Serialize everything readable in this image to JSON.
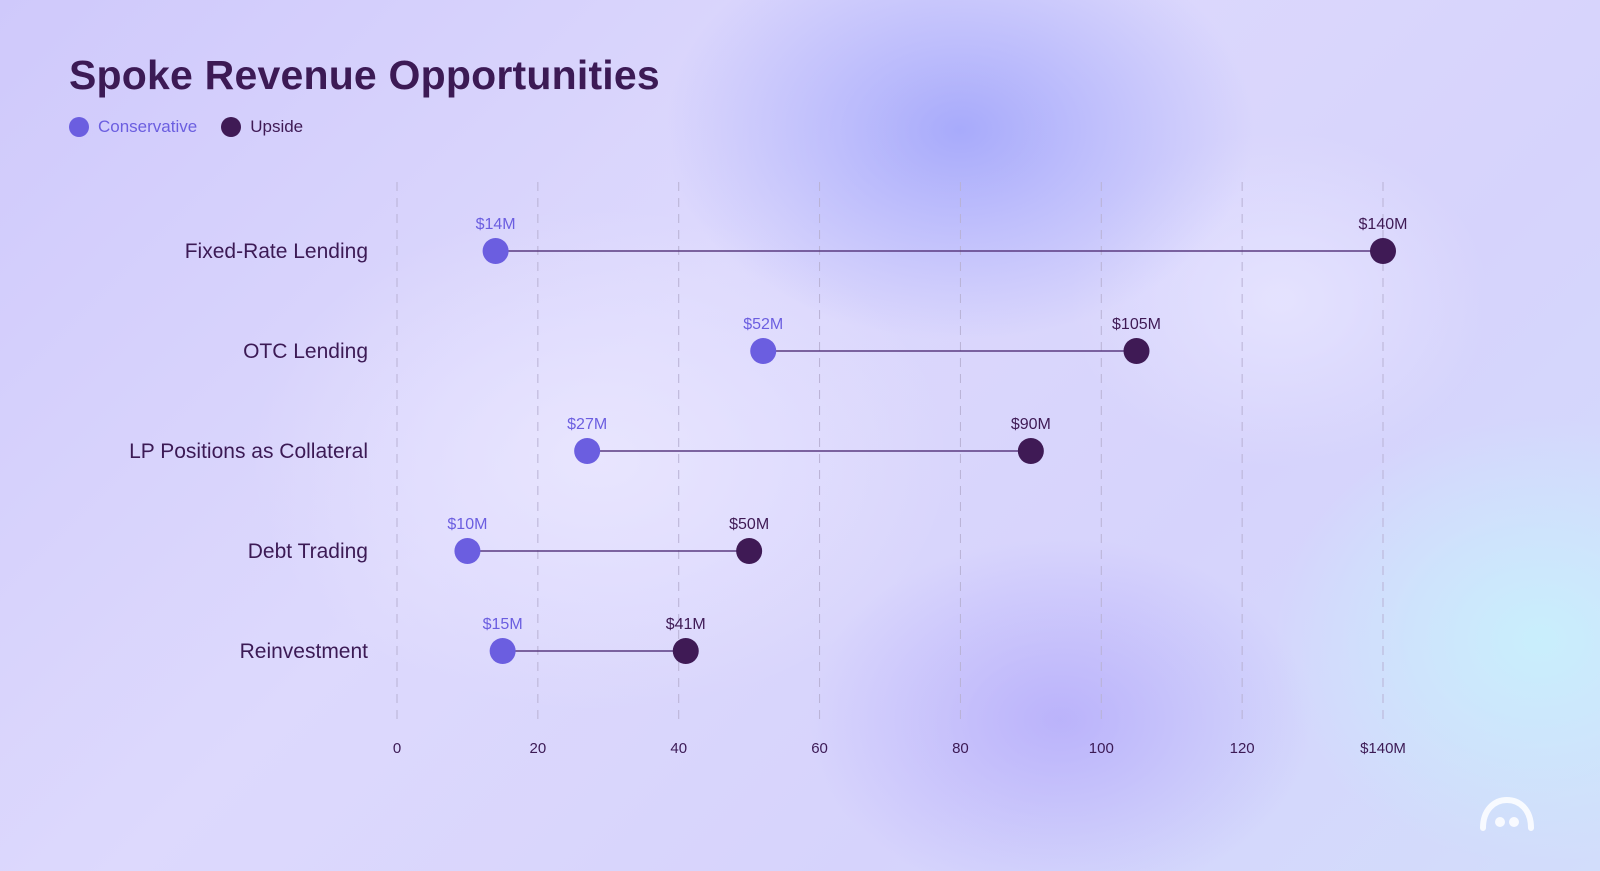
{
  "colors": {
    "conservative": "#6b5ee0",
    "upside": "#3f1a55",
    "title": "#3c1a55",
    "gridline": "#b9b2d4",
    "connector": "#5a3a80"
  },
  "logo_icon": "cloud-face-icon",
  "chart_data": {
    "type": "dumbbell",
    "title": "Spoke Revenue Opportunities",
    "xlabel": "",
    "ylabel": "",
    "unit": "$M",
    "xlim": [
      0,
      140
    ],
    "x_ticks": [
      0,
      20,
      40,
      60,
      80,
      100,
      120,
      140
    ],
    "x_tick_labels": [
      "0",
      "20",
      "40",
      "60",
      "80",
      "100",
      "120",
      "$140M"
    ],
    "grid": "vertical-dashed",
    "legend_position": "top-left",
    "series": [
      {
        "name": "Conservative",
        "color": "#6b5ee0"
      },
      {
        "name": "Upside",
        "color": "#3f1a55"
      }
    ],
    "categories": [
      "Fixed-Rate Lending",
      "OTC Lending",
      "LP Positions as Collateral",
      "Debt Trading",
      "Reinvestment"
    ],
    "rows": [
      {
        "category": "Fixed-Rate Lending",
        "conservative": 14,
        "conservative_label": "$14M",
        "upside": 140,
        "upside_label": "$140M"
      },
      {
        "category": "OTC Lending",
        "conservative": 52,
        "conservative_label": "$52M",
        "upside": 105,
        "upside_label": "$105M"
      },
      {
        "category": "LP Positions as Collateral",
        "conservative": 27,
        "conservative_label": "$27M",
        "upside": 90,
        "upside_label": "$90M"
      },
      {
        "category": "Debt Trading",
        "conservative": 10,
        "conservative_label": "$10M",
        "upside": 50,
        "upside_label": "$50M"
      },
      {
        "category": "Reinvestment",
        "conservative": 15,
        "conservative_label": "$15M",
        "upside": 41,
        "upside_label": "$41M"
      }
    ]
  }
}
